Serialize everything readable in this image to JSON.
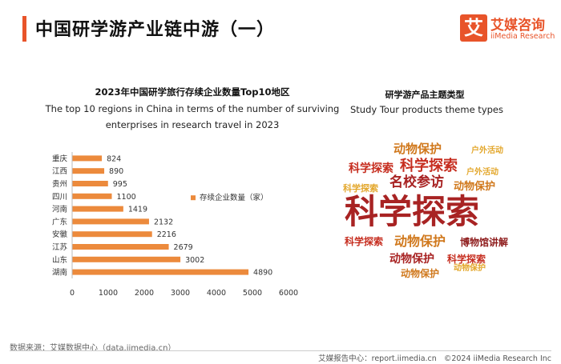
{
  "header": {
    "title": "中国研学游产业链中游（一）"
  },
  "logo": {
    "mark": "艾",
    "cn": "艾媒咨询",
    "en": "iiMedia Research"
  },
  "left_chart": {
    "title_cn": "2023年中国研学旅行存续企业数量Top10地区",
    "title_en": "The top 10 regions in China in terms of the number of surviving enterprises in research travel in 2023"
  },
  "chart_data": {
    "type": "bar",
    "orientation": "horizontal",
    "title": "2023年中国研学旅行存续企业数量Top10地区",
    "categories": [
      "重庆",
      "江西",
      "贵州",
      "四川",
      "河南",
      "广东",
      "安徽",
      "江苏",
      "山东",
      "湖南"
    ],
    "series": [
      {
        "name": "存续企业数量（家）",
        "values": [
          824,
          890,
          995,
          1100,
          1419,
          2132,
          2216,
          2679,
          3002,
          4890
        ]
      }
    ],
    "xlim": [
      0,
      6000
    ],
    "xticks": [
      0,
      1000,
      2000,
      3000,
      4000,
      5000,
      6000
    ],
    "xlabel": "",
    "ylabel": "",
    "grid": false,
    "legend": "right",
    "colors": {
      "bar": "#ec8a3c"
    }
  },
  "word_cloud": {
    "title_cn": "研学游产品主题类型",
    "title_en": "Study Tour products theme types",
    "words": [
      {
        "text": "动物保护",
        "color": "#d0781c"
      },
      {
        "text": "户外活动",
        "color": "#e3a72c"
      },
      {
        "text": "科学探索",
        "color": "#c62d1f"
      },
      {
        "text": "科学探索",
        "color": "#c62d1f"
      },
      {
        "text": "户外活动",
        "color": "#e3a72c"
      },
      {
        "text": "科学探索",
        "color": "#e3a72c"
      },
      {
        "text": "名校参访",
        "color": "#a82323"
      },
      {
        "text": "动物保护",
        "color": "#d0781c"
      },
      {
        "text": "科学探索",
        "color": "#a82323"
      },
      {
        "text": "科学探索",
        "color": "#c62d1f"
      },
      {
        "text": "动物保护",
        "color": "#d0781c"
      },
      {
        "text": "博物馆讲解",
        "color": "#8e1c1c"
      },
      {
        "text": "动物保护",
        "color": "#a82323"
      },
      {
        "text": "科学探索",
        "color": "#c62d1f"
      },
      {
        "text": "动物保护",
        "color": "#d0781c"
      },
      {
        "text": "动物保护",
        "color": "#e3a72c"
      }
    ]
  },
  "footer": {
    "source": "数据来源：艾媒数据中心（data.iimedia.cn）",
    "report": "艾媒报告中心：report.iimedia.cn",
    "copyright": "©2024  iiMedia Research  Inc"
  }
}
